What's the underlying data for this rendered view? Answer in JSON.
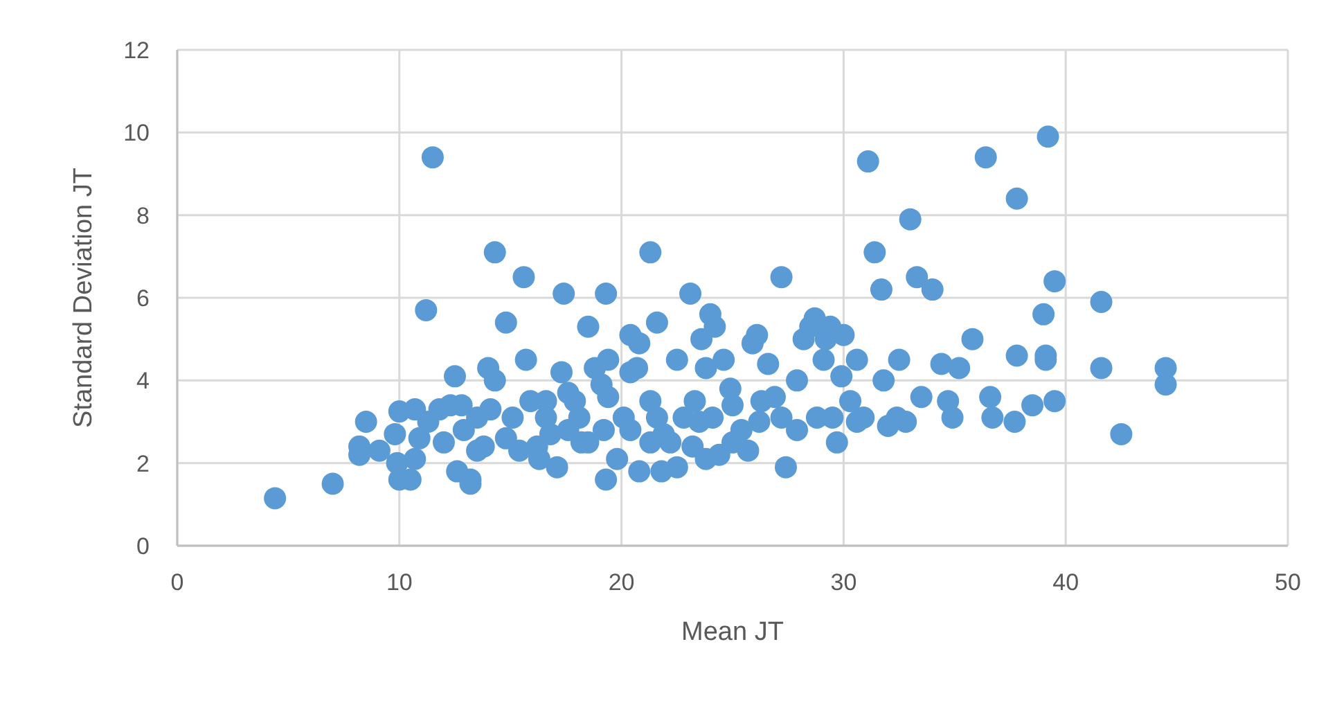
{
  "chart_data": {
    "type": "scatter",
    "xlabel": "Mean JT",
    "ylabel": "Standard Deviation JT",
    "xlim": [
      0,
      50
    ],
    "xticks": [
      0,
      10,
      20,
      30,
      40,
      50
    ],
    "ylim": [
      0,
      12
    ],
    "yticks": [
      0,
      2,
      4,
      6,
      8,
      10,
      12
    ],
    "grid": true,
    "marker": "circle",
    "series": [
      {
        "color": "#5b9bd5",
        "x": [
          4.4,
          7.0,
          8.5,
          8.2,
          8.2,
          9.1,
          10.0,
          9.8,
          9.9,
          10.0,
          10.5,
          10.7,
          10.9,
          11.5,
          11.2,
          11.3,
          11.8,
          12.3,
          12.5,
          12.8,
          12.0,
          12.6,
          13.2,
          13.2,
          13.5,
          13.8,
          14.0,
          14.3,
          14.3,
          14.1,
          14.8,
          15.1,
          15.6,
          15.7,
          15.9,
          16.2,
          16.3,
          16.6,
          16.8,
          17.1,
          17.4,
          17.3,
          17.6,
          17.9,
          18.1,
          18.2,
          18.5,
          18.8,
          19.1,
          19.2,
          19.3,
          19.4,
          19.3,
          19.8,
          20.1,
          20.4,
          20.4,
          20.8,
          20.7,
          20.8,
          21.3,
          21.6,
          21.6,
          21.9,
          21.8,
          22.5,
          22.5,
          22.8,
          23.1,
          23.3,
          23.6,
          23.8,
          24.0,
          24.2,
          24.1,
          24.4,
          24.6,
          24.9,
          25.4,
          25.7,
          25.9,
          26.1,
          26.3,
          26.6,
          26.9,
          27.2,
          27.2,
          27.4,
          27.9,
          28.2,
          28.5,
          28.7,
          29.1,
          29.2,
          29.4,
          29.5,
          29.7,
          29.9,
          30.0,
          30.3,
          30.6,
          30.9,
          31.1,
          31.4,
          31.7,
          31.8,
          32.0,
          32.4,
          32.5,
          32.8,
          33.0,
          33.3,
          33.5,
          34.0,
          34.4,
          34.7,
          34.9,
          35.2,
          35.8,
          36.4,
          36.6,
          36.7,
          37.8,
          37.7,
          37.8,
          38.5,
          39.2,
          39.0,
          39.1,
          39.1,
          39.5,
          39.5,
          41.6,
          41.6,
          42.5,
          44.5,
          44.5,
          10.7,
          12.9,
          13.5,
          14.8,
          15.4,
          16.6,
          17.6,
          18.5,
          19.4,
          20.4,
          21.3,
          21.3,
          22.2,
          23.2,
          23.5,
          23.8,
          25.0,
          25.0,
          26.2,
          28.8,
          27.9,
          30.6
        ],
        "values": [
          1.15,
          1.5,
          3.0,
          2.4,
          2.2,
          2.3,
          3.25,
          2.7,
          2.0,
          1.6,
          1.6,
          2.1,
          2.6,
          9.4,
          5.7,
          3.0,
          3.3,
          3.4,
          4.1,
          3.4,
          2.5,
          1.8,
          1.6,
          1.5,
          3.1,
          2.4,
          4.3,
          4.0,
          7.1,
          3.3,
          5.4,
          3.1,
          6.5,
          4.5,
          3.5,
          2.4,
          2.1,
          3.1,
          2.7,
          1.9,
          6.1,
          4.2,
          3.7,
          3.5,
          3.1,
          2.5,
          5.3,
          4.3,
          3.9,
          2.8,
          6.1,
          4.5,
          1.6,
          2.1,
          3.1,
          5.1,
          4.2,
          4.9,
          4.3,
          1.8,
          7.1,
          5.4,
          3.1,
          2.7,
          1.8,
          4.5,
          1.9,
          3.1,
          6.1,
          3.5,
          5.0,
          4.3,
          5.6,
          5.3,
          3.1,
          2.2,
          4.5,
          3.8,
          2.8,
          2.3,
          4.9,
          5.1,
          3.5,
          4.4,
          3.6,
          6.5,
          3.1,
          1.9,
          2.8,
          5.0,
          5.3,
          5.5,
          4.5,
          5.0,
          5.3,
          3.1,
          2.5,
          4.1,
          5.1,
          3.5,
          4.5,
          3.1,
          9.3,
          7.1,
          6.2,
          4.0,
          2.9,
          3.1,
          4.5,
          3.0,
          7.9,
          6.5,
          3.6,
          6.2,
          4.4,
          3.5,
          3.1,
          4.3,
          5.0,
          9.4,
          3.6,
          3.1,
          8.4,
          3.0,
          4.6,
          3.4,
          9.9,
          5.6,
          4.6,
          4.5,
          6.4,
          3.5,
          5.9,
          4.3,
          2.7,
          4.3,
          3.9,
          3.3,
          2.8,
          2.3,
          2.6,
          2.3,
          3.5,
          2.8,
          2.5,
          3.6,
          2.8,
          2.5,
          3.5,
          2.5,
          2.4,
          3.0,
          2.1,
          3.4,
          2.5,
          3.0,
          3.1,
          4.0,
          3.0
        ]
      }
    ]
  }
}
